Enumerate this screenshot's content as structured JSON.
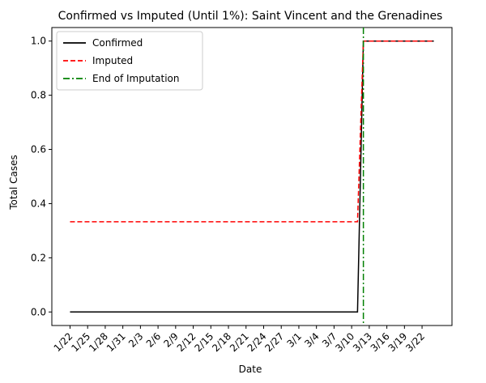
{
  "chart_data": {
    "type": "line",
    "title": "Confirmed vs Imputed (Until 1%): Saint Vincent and the Grenadines",
    "xlabel": "Date",
    "ylabel": "Total Cases",
    "ylim": [
      -0.05,
      1.05
    ],
    "yticks": [
      0.0,
      0.2,
      0.4,
      0.6,
      0.8,
      1.0
    ],
    "ytick_labels": [
      "0.0",
      "0.2",
      "0.4",
      "0.6",
      "0.8",
      "1.0"
    ],
    "x_start": "1/22",
    "x_end": "3/24",
    "xticks": [
      "1/22",
      "1/25",
      "1/28",
      "1/31",
      "2/3",
      "2/6",
      "2/9",
      "2/12",
      "2/15",
      "2/18",
      "2/21",
      "2/24",
      "2/27",
      "3/1",
      "3/4",
      "3/7",
      "3/10",
      "3/13",
      "3/16",
      "3/19",
      "3/22"
    ],
    "grid": false,
    "legend": "top-left",
    "series": [
      {
        "name": "Confirmed",
        "color": "#000000",
        "style": "solid",
        "points": [
          [
            "1/22",
            0
          ],
          [
            "3/11",
            0
          ],
          [
            "3/12",
            1
          ],
          [
            "3/24",
            1
          ]
        ]
      },
      {
        "name": "Imputed",
        "color": "#ff0000",
        "style": "dashed",
        "points": [
          [
            "1/22",
            0.333
          ],
          [
            "3/10",
            0.333
          ],
          [
            "3/11",
            0.333
          ],
          [
            "3/12",
            1
          ],
          [
            "3/24",
            1
          ]
        ]
      }
    ],
    "vlines": [
      {
        "name": "End of Imputation",
        "color": "#008000",
        "style": "dashdot",
        "x": "3/12"
      }
    ]
  }
}
